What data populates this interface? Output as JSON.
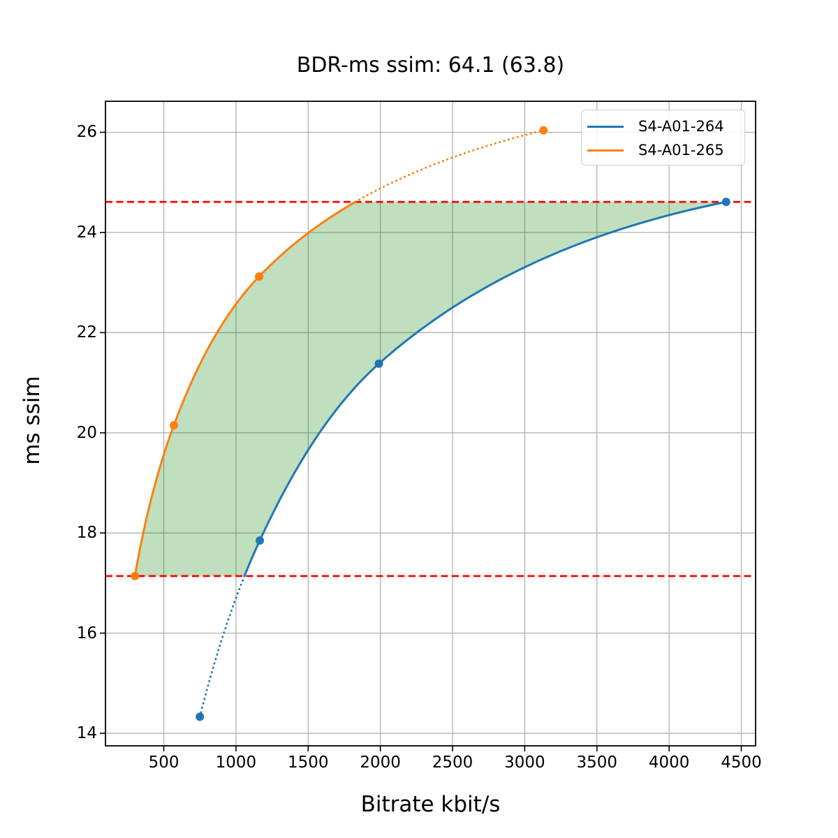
{
  "chart_data": {
    "type": "line",
    "title": "BDR-ms ssim: 64.1 (63.8)",
    "xlabel": "Bitrate kbit/s",
    "ylabel": "ms ssim",
    "xlim": [
      96,
      4599
    ],
    "ylim": [
      13.75,
      26.62
    ],
    "x_ticks": [
      500,
      1000,
      1500,
      2000,
      2500,
      3000,
      3500,
      4000,
      4500
    ],
    "y_ticks": [
      14,
      16,
      18,
      20,
      22,
      24,
      26
    ],
    "grid": true,
    "grid_color": "#b0b0b0",
    "legend_position": "upper right",
    "series": [
      {
        "name": "S4-A01-264",
        "color": "#1f77b4",
        "marker": "circle",
        "x": [
          750,
          1165,
          1990,
          4395
        ],
        "y": [
          14.33,
          17.85,
          21.38,
          24.61
        ]
      },
      {
        "name": "S4-A01-265",
        "color": "#ff7f0e",
        "marker": "circle",
        "x": [
          300,
          570,
          1160,
          3130
        ],
        "y": [
          17.14,
          20.15,
          23.12,
          26.04
        ]
      }
    ],
    "overlap_bounds": {
      "lower": 17.14,
      "upper": 24.61,
      "line_color": "#ff0000",
      "line_style": "dashed"
    },
    "fill_between_curves": {
      "color": "#008000",
      "opacity": 0.25
    },
    "out_of_overlap_style": "dotted"
  }
}
